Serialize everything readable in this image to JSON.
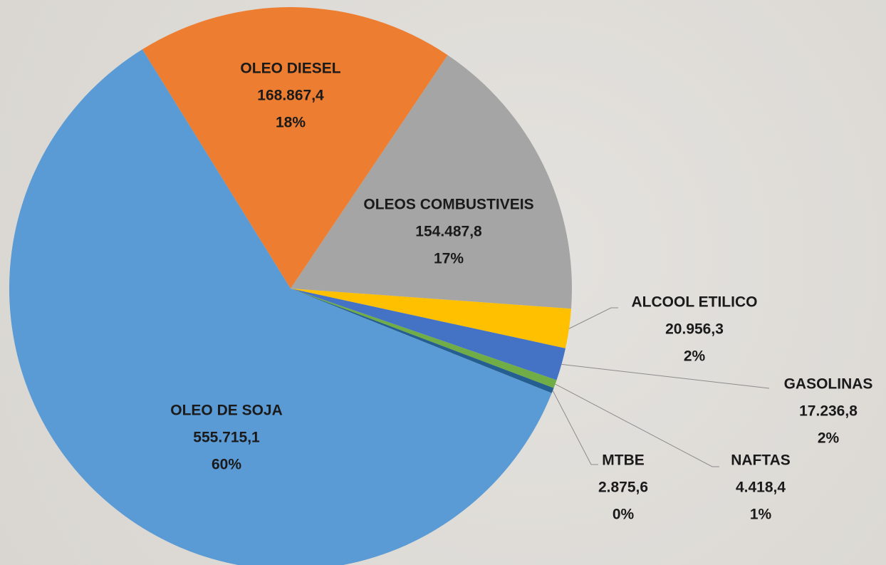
{
  "chart_data": {
    "type": "pie",
    "categories": [
      "OLEO DIESEL",
      "OLEOS COMBUSTIVEIS",
      "ALCOOL ETILICO",
      "GASOLINAS",
      "NAFTAS",
      "MTBE",
      "OLEO DE SOJA"
    ],
    "values": [
      168867.4,
      154487.8,
      20956.3,
      17236.8,
      4418.4,
      2875.6,
      555715.1
    ],
    "value_labels": [
      "168.867,4",
      "154.487,8",
      "20.956,3",
      "17.236,8",
      "4.418,4",
      "2.875,6",
      "555.715,1"
    ],
    "percent_labels": [
      "18%",
      "17%",
      "2%",
      "2%",
      "1%",
      "0%",
      "60%"
    ],
    "colors": [
      "#ed7d31",
      "#a5a5a5",
      "#ffc000",
      "#4472c4",
      "#70ad47",
      "#255e91",
      "#5b9bd5"
    ]
  }
}
